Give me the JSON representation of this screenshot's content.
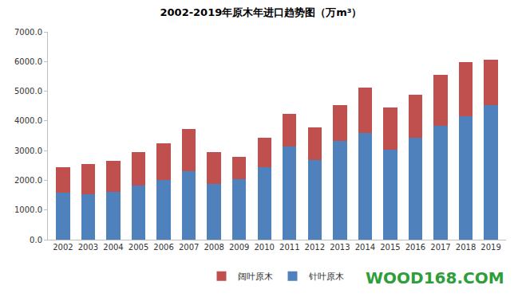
{
  "chart_data": {
    "type": "bar",
    "title": "2002-2019年原木年进口趋势图（万m³）",
    "categories": [
      "2002",
      "2003",
      "2004",
      "2005",
      "2006",
      "2007",
      "2008",
      "2009",
      "2010",
      "2011",
      "2012",
      "2013",
      "2014",
      "2015",
      "2016",
      "2017",
      "2018",
      "2019"
    ],
    "series": [
      {
        "name": "针叶原木",
        "color": "#4f81bd",
        "values": [
          1590,
          1530,
          1610,
          1830,
          2000,
          2320,
          1870,
          2040,
          2430,
          3150,
          2690,
          3320,
          3600,
          3020,
          3420,
          3830,
          4150,
          4540
        ]
      },
      {
        "name": "阔叶原木",
        "color": "#c0504d",
        "values": [
          840,
          1010,
          1040,
          1110,
          1240,
          1400,
          1090,
          760,
          1000,
          1080,
          1100,
          1200,
          1520,
          1440,
          1450,
          1710,
          1820,
          1520
        ]
      }
    ],
    "stacked": true,
    "ylim": [
      0,
      7000
    ],
    "yticks": [
      {
        "value": 0,
        "label": "0.0"
      },
      {
        "value": 1000,
        "label": "1000.0"
      },
      {
        "value": 2000,
        "label": "2000.0"
      },
      {
        "value": 3000,
        "label": "3000.0"
      },
      {
        "value": 4000,
        "label": "4000.0"
      },
      {
        "value": 5000,
        "label": "5000.0"
      },
      {
        "value": 6000,
        "label": "6000.0"
      },
      {
        "value": 7000,
        "label": "7000.0"
      }
    ],
    "grid": false,
    "legend": "bottom",
    "annotations": [
      "WOOD168.COM"
    ]
  }
}
